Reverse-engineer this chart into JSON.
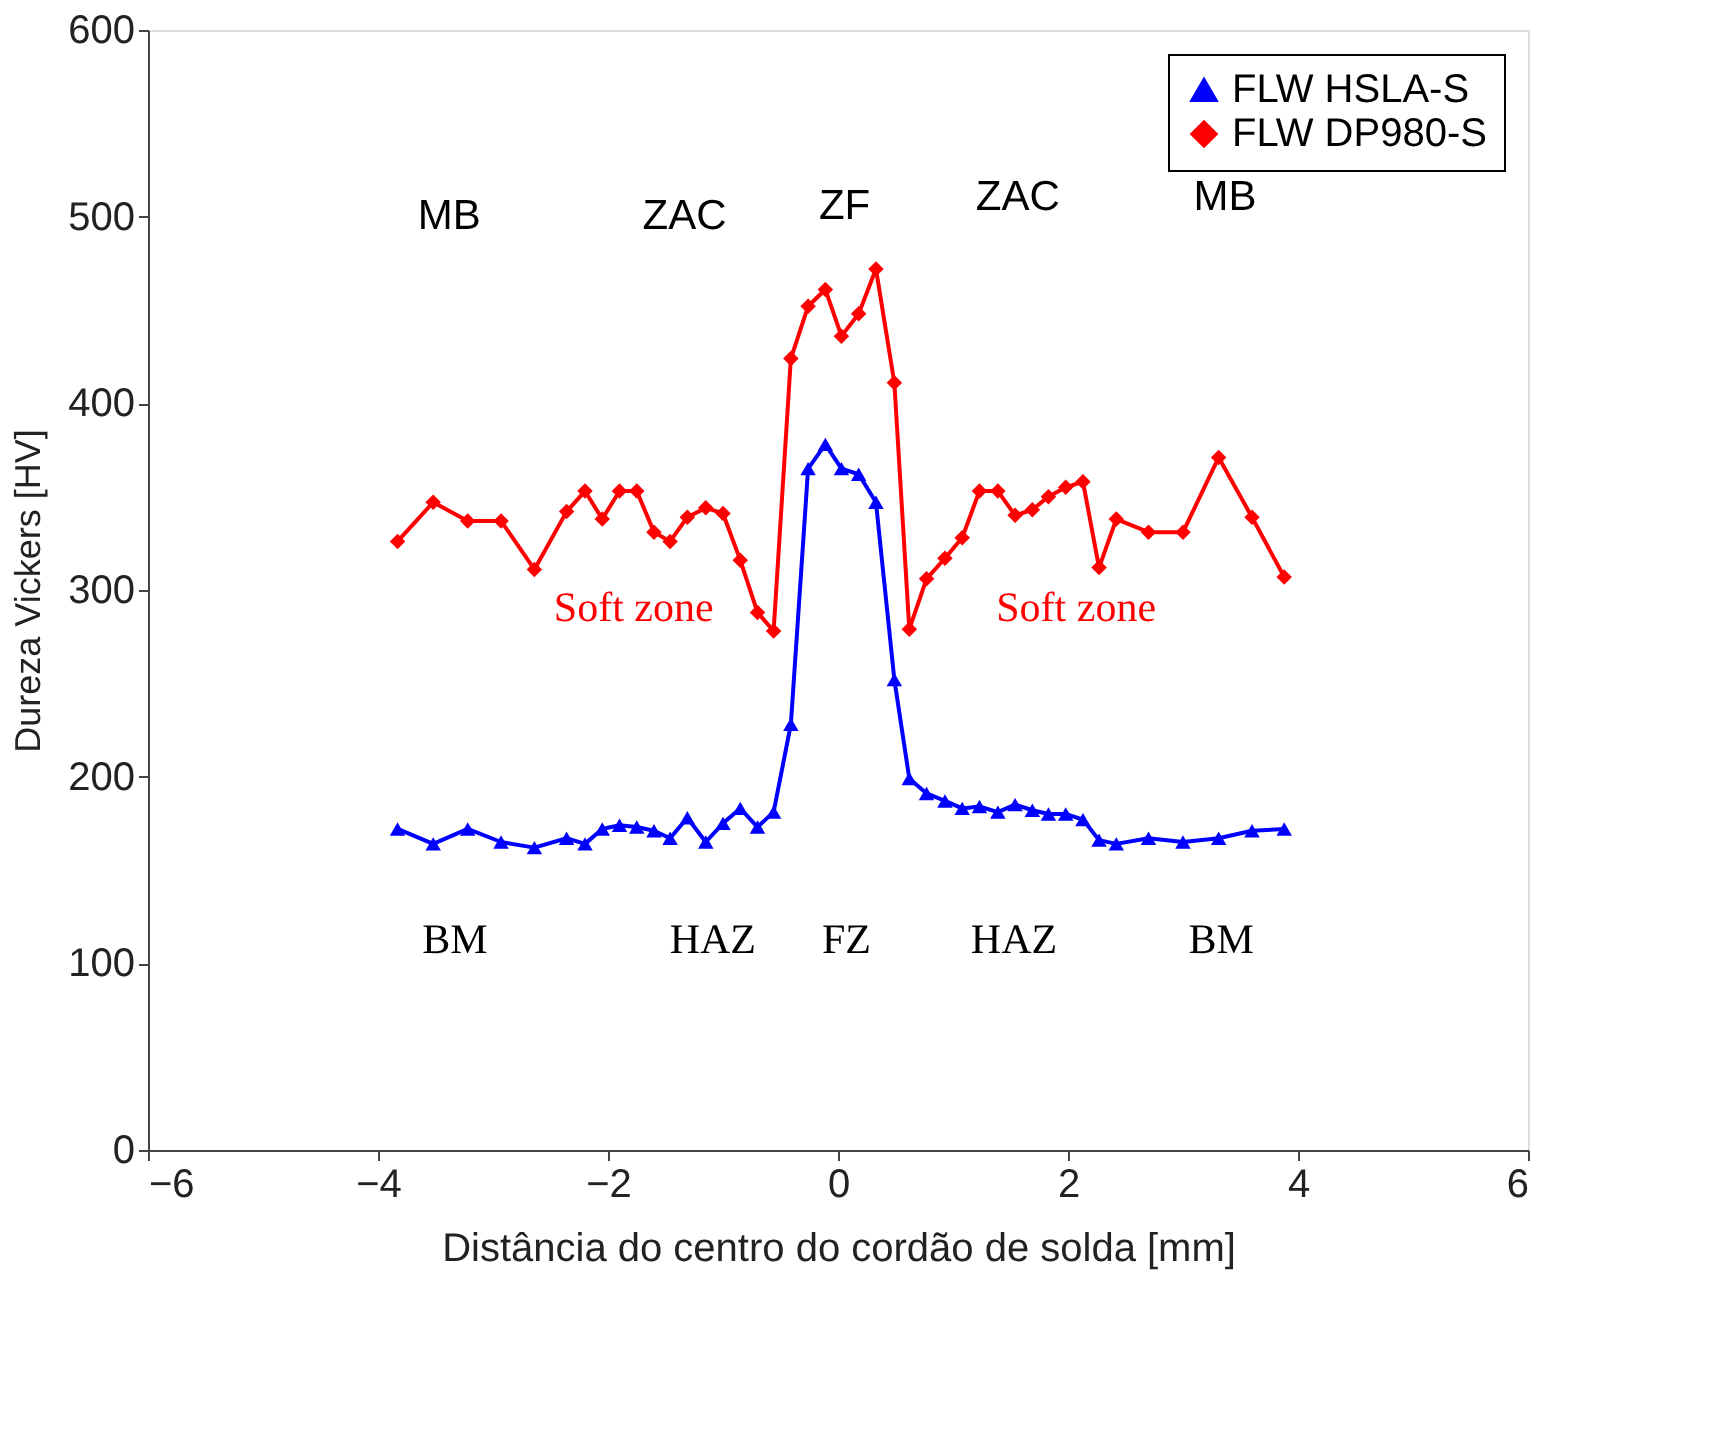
{
  "chart_data": {
    "type": "line",
    "xlabel": "Distância do centro do cordão de solda [mm]",
    "ylabel": "Dureza Vickers [HV]",
    "xlim": [
      -6,
      6
    ],
    "xticks": [
      -6,
      -4,
      -2,
      0,
      2,
      4,
      6
    ],
    "ylim": [
      0,
      600
    ],
    "yticks": [
      0,
      100,
      200,
      300,
      400,
      500,
      600
    ],
    "grid": false,
    "legend": "top right",
    "line_style": "solid",
    "series": [
      {
        "name": "FLW HSLA-S",
        "color": "#0000ff",
        "marker": "triangle",
        "x": [
          -3.83,
          -3.52,
          -3.22,
          -2.93,
          -2.64,
          -2.36,
          -2.2,
          -2.05,
          -1.9,
          -1.75,
          -1.6,
          -1.46,
          -1.31,
          -1.15,
          -1.0,
          -0.85,
          -0.7,
          -0.56,
          -0.41,
          -0.26,
          -0.11,
          0.03,
          0.18,
          0.33,
          0.49,
          0.62,
          0.77,
          0.93,
          1.08,
          1.23,
          1.39,
          1.54,
          1.69,
          1.83,
          1.98,
          2.13,
          2.27,
          2.42,
          2.7,
          3.0,
          3.31,
          3.6,
          3.88
        ],
        "values": [
          172,
          164,
          172,
          165,
          162,
          167,
          164,
          172,
          174,
          173,
          171,
          167,
          178,
          165,
          175,
          183,
          173,
          181,
          228,
          365,
          378,
          365,
          362,
          347,
          252,
          199,
          191,
          187,
          183,
          184,
          181,
          185,
          182,
          180,
          180,
          177,
          166,
          164,
          167,
          165,
          167,
          171,
          172
        ]
      },
      {
        "name": "FLW DP980-S",
        "color": "#ff0000",
        "marker": "diamond",
        "x": [
          -3.83,
          -3.52,
          -3.22,
          -2.93,
          -2.64,
          -2.36,
          -2.2,
          -2.05,
          -1.9,
          -1.75,
          -1.6,
          -1.46,
          -1.31,
          -1.15,
          -1.0,
          -0.85,
          -0.7,
          -0.56,
          -0.41,
          -0.26,
          -0.11,
          0.03,
          0.18,
          0.33,
          0.49,
          0.62,
          0.77,
          0.93,
          1.08,
          1.23,
          1.39,
          1.54,
          1.69,
          1.83,
          1.98,
          2.13,
          2.27,
          2.42,
          2.7,
          3.0,
          3.31,
          3.6,
          3.88
        ],
        "values": [
          326,
          347,
          337,
          337,
          311,
          342,
          353,
          338,
          353,
          353,
          331,
          326,
          339,
          344,
          341,
          316,
          288,
          278,
          424,
          452,
          461,
          436,
          448,
          472,
          411,
          279,
          306,
          317,
          328,
          353,
          353,
          340,
          343,
          350,
          355,
          358,
          312,
          338,
          331,
          331,
          371,
          339,
          307
        ]
      }
    ],
    "annotations": [
      "MB",
      "ZAC",
      "ZF",
      "ZAC",
      "MB",
      "BM",
      "HAZ",
      "FZ",
      "HAZ",
      "BM",
      "Soft zone",
      "Soft zone"
    ]
  }
}
